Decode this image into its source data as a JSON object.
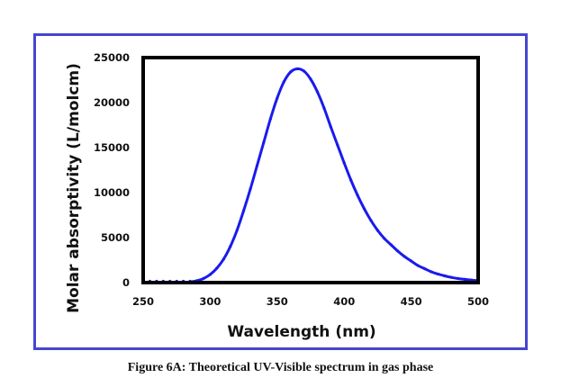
{
  "caption": "Figure 6A: Theoretical UV-Visible spectrum in gas phase",
  "colors": {
    "frame": "#4545d2",
    "series": "#1a1aee",
    "plot_border": "#000000"
  },
  "chart_data": {
    "type": "line",
    "title": "",
    "xlabel": "Wavelength (nm)",
    "ylabel": "Molar absorptivity (L/molcm)",
    "xlim": [
      250,
      500
    ],
    "ylim": [
      0,
      25000
    ],
    "xticks": [
      "250",
      "300",
      "350",
      "400",
      "450",
      "500"
    ],
    "yticks": [
      "0",
      "5000",
      "10000",
      "15000",
      "20000",
      "25000"
    ],
    "grid": false,
    "legend": "none",
    "series": [
      {
        "name": "Theoretical UV-Visible spectrum",
        "x": [
          250,
          255,
          260,
          265,
          270,
          275,
          280,
          285,
          290,
          295,
          300,
          305,
          310,
          315,
          320,
          325,
          330,
          335,
          340,
          345,
          350,
          355,
          360,
          365,
          370,
          375,
          380,
          385,
          390,
          395,
          400,
          405,
          410,
          415,
          420,
          425,
          430,
          435,
          440,
          445,
          450,
          455,
          460,
          465,
          470,
          475,
          480,
          485,
          490,
          495,
          500
        ],
        "y": [
          0,
          0,
          0,
          0,
          0,
          10,
          20,
          60,
          200,
          450,
          900,
          1600,
          2600,
          4000,
          5800,
          8000,
          10400,
          13000,
          15600,
          18200,
          20500,
          22300,
          23400,
          23750,
          23500,
          22600,
          21200,
          19400,
          17300,
          15300,
          13300,
          11400,
          9700,
          8200,
          6900,
          5800,
          4900,
          4200,
          3500,
          2900,
          2400,
          1900,
          1550,
          1200,
          950,
          750,
          580,
          450,
          360,
          280,
          220
        ]
      }
    ]
  }
}
